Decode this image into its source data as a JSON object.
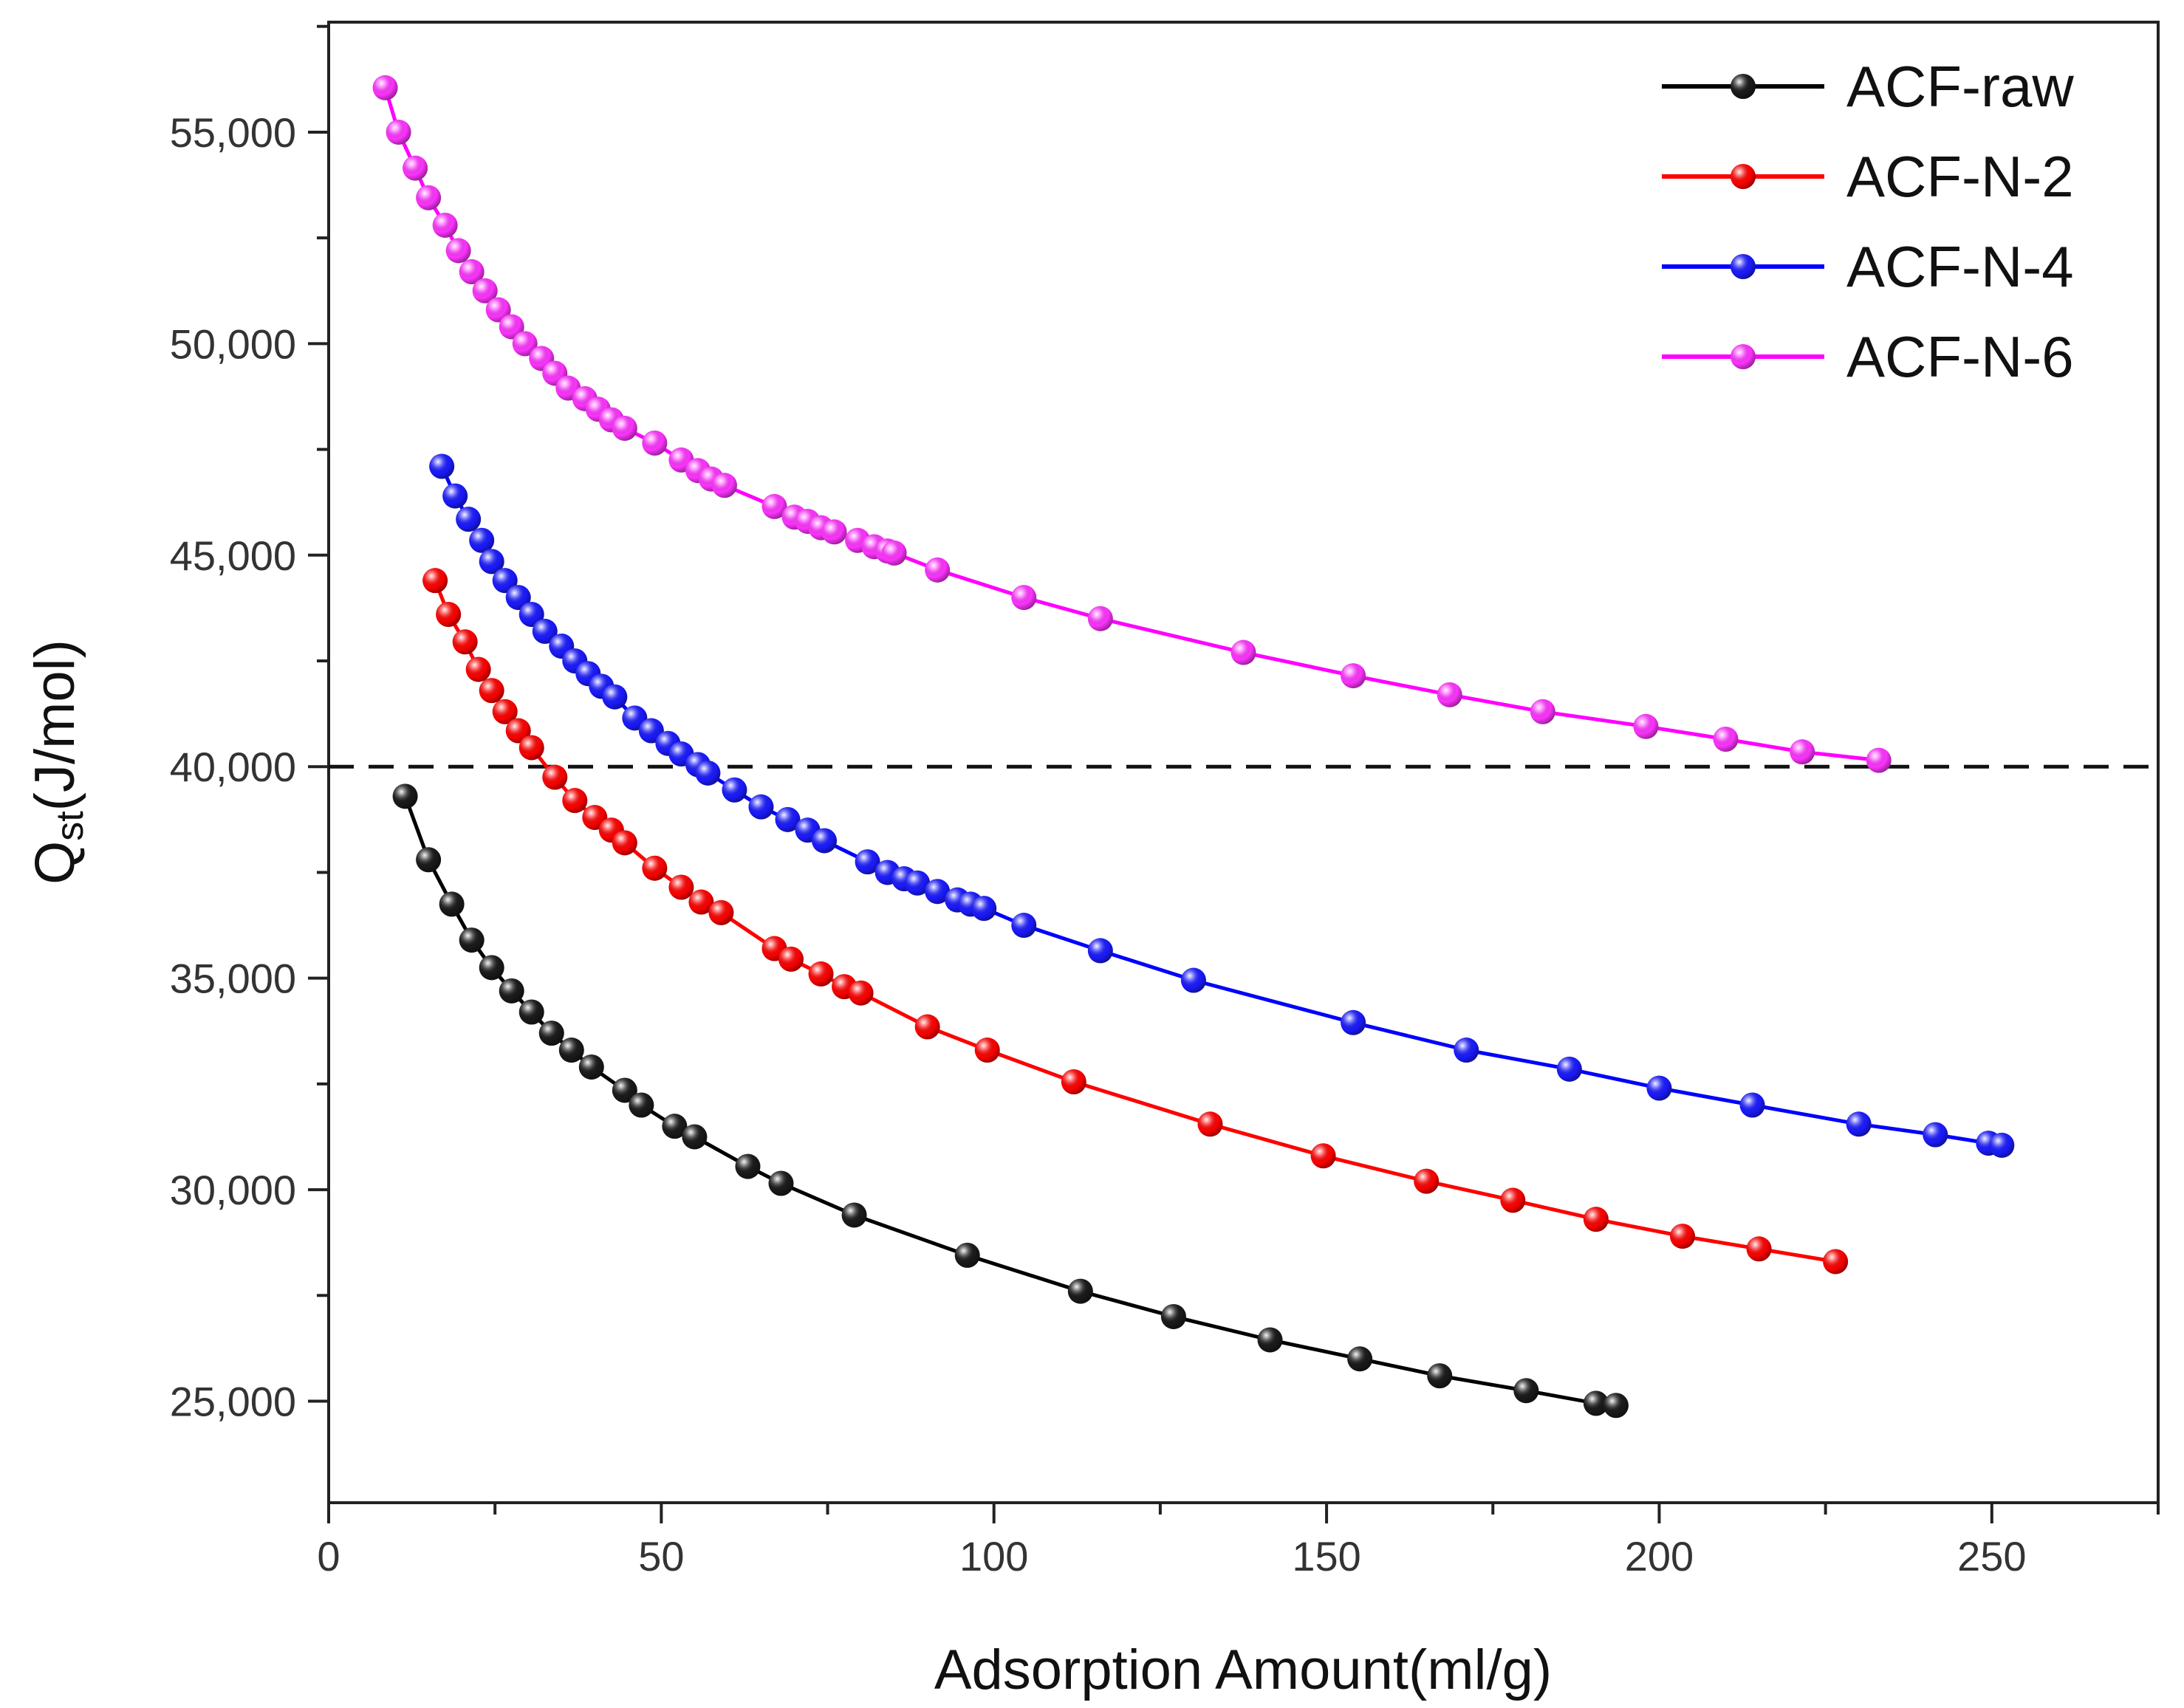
{
  "chart_data": {
    "type": "line",
    "xlabel": "Adsorption Amount(ml/g)",
    "ylabel_main": "Q",
    "ylabel_sub": "st",
    "ylabel_tail": "(J/mol)",
    "xlim": [
      0,
      275
    ],
    "ylim": [
      22600,
      57600
    ],
    "x_ticks": [
      0,
      50,
      100,
      150,
      200,
      250
    ],
    "x_tick_labels": [
      "0",
      "50",
      "100",
      "150",
      "200",
      "250"
    ],
    "y_ticks": [
      25000,
      30000,
      35000,
      40000,
      45000,
      50000,
      55000
    ],
    "y_tick_labels": [
      "25,000",
      "30,000",
      "35,000",
      "40,000",
      "45,000",
      "50,000",
      "55,000"
    ],
    "reference_line": {
      "y": 40000,
      "style": "dashed"
    },
    "legend_position": "top-right",
    "series": [
      {
        "name": "ACF-raw",
        "color": "#000000",
        "marker_color": "#1a1a1a",
        "x": [
          11.5,
          15,
          18.5,
          21.5,
          24.5,
          27.5,
          30.5,
          33.5,
          36.5,
          39.5,
          44.5,
          47,
          52,
          55,
          63,
          68,
          79,
          96,
          113,
          127,
          141.5,
          155,
          167,
          180,
          190.5,
          193.5
        ],
        "y": [
          39300,
          37800,
          36750,
          35900,
          35250,
          34700,
          34200,
          33700,
          33300,
          32900,
          32350,
          32000,
          31500,
          31250,
          30550,
          30150,
          29400,
          28450,
          27600,
          27000,
          26450,
          26000,
          25600,
          25250,
          24950,
          24900
        ]
      },
      {
        "name": "ACF-N-2",
        "color": "#ff0000",
        "marker_color": "#ff0000",
        "x": [
          16,
          18,
          20.5,
          22.5,
          24.5,
          26.5,
          28.5,
          30.5,
          34,
          37,
          40,
          42.5,
          44.5,
          49,
          53,
          56,
          59,
          67,
          69.5,
          74,
          77.5,
          80,
          90,
          99,
          112,
          132.5,
          149.5,
          165,
          178,
          190.5,
          203.5,
          215,
          226.5
        ],
        "y": [
          44400,
          43600,
          42950,
          42300,
          41800,
          41300,
          40850,
          40450,
          39750,
          39200,
          38800,
          38500,
          38200,
          37600,
          37150,
          36800,
          36550,
          35700,
          35450,
          35100,
          34800,
          34650,
          33850,
          33300,
          32550,
          31550,
          30800,
          30200,
          29750,
          29300,
          28900,
          28600,
          28300
        ]
      },
      {
        "name": "ACF-N-4",
        "color": "#0000ff",
        "marker_color": "#1a1aff",
        "x": [
          17,
          19,
          21,
          23,
          24.5,
          26.5,
          28.5,
          30.5,
          32.5,
          35,
          37,
          39,
          41,
          43,
          46,
          48.5,
          51,
          53,
          55.5,
          57,
          61,
          65,
          69,
          72,
          74.5,
          81,
          84,
          86.5,
          88.5,
          91.5,
          94.5,
          96.5,
          98.5,
          104.5,
          116,
          130,
          154,
          171,
          186.5,
          200,
          214,
          230,
          241.5,
          249.5,
          251.5
        ],
        "y": [
          47100,
          46400,
          45850,
          45350,
          44850,
          44400,
          44000,
          43600,
          43200,
          42850,
          42500,
          42200,
          41900,
          41650,
          41150,
          40850,
          40550,
          40300,
          40050,
          39850,
          39450,
          39050,
          38750,
          38500,
          38250,
          37750,
          37500,
          37350,
          37250,
          37050,
          36850,
          36750,
          36650,
          36250,
          35650,
          34950,
          33950,
          33300,
          32850,
          32400,
          32000,
          31550,
          31300,
          31100,
          31050
        ]
      },
      {
        "name": "ACF-N-6",
        "color": "#ff00ff",
        "marker_color": "#ff33ff",
        "x": [
          8.5,
          10.5,
          13,
          15,
          17.5,
          19.5,
          21.5,
          23.5,
          25.5,
          27.5,
          29.5,
          32,
          34,
          36,
          38.5,
          40.5,
          42.5,
          44.5,
          49,
          53,
          55.5,
          57.5,
          59.5,
          67,
          70,
          72,
          74,
          76,
          79.5,
          82,
          84,
          85,
          91.5,
          104.5,
          116,
          137.5,
          154,
          168.5,
          182.5,
          198,
          210,
          221.5,
          233
        ],
        "y": [
          56050,
          55000,
          54150,
          53450,
          52800,
          52200,
          51700,
          51250,
          50800,
          50400,
          50000,
          49650,
          49300,
          48950,
          48700,
          48450,
          48200,
          48000,
          47650,
          47250,
          47000,
          46800,
          46650,
          46150,
          45900,
          45800,
          45650,
          45550,
          45350,
          45200,
          45100,
          45050,
          44650,
          44000,
          43500,
          42700,
          42150,
          41700,
          41300,
          40950,
          40650,
          40350,
          40150
        ]
      }
    ]
  }
}
